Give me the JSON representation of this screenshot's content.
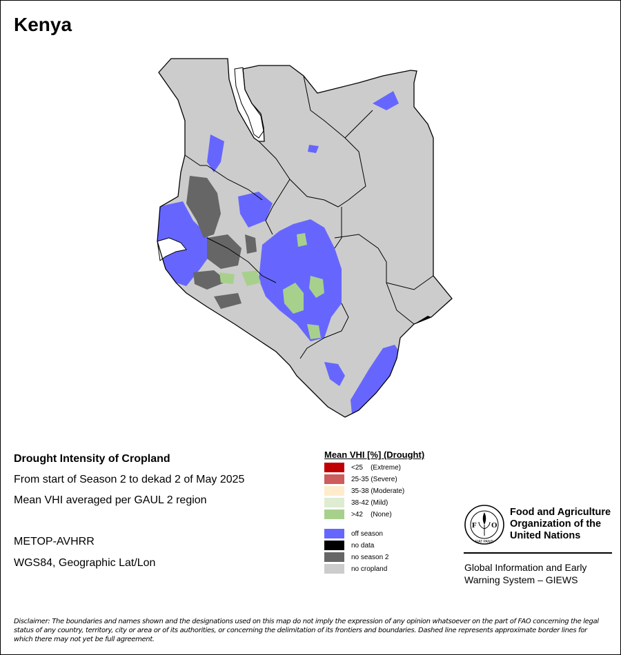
{
  "title": "Kenya",
  "map_info": {
    "heading": "Drought Intensity of Cropland",
    "period": "From start of Season 2 to dekad 2 of May 2025",
    "method": "Mean VHI averaged per GAUL 2 region",
    "sensor": "METOP-AVHRR",
    "projection": "WGS84, Geographic Lat/Lon"
  },
  "legend": {
    "title": "Mean VHI [%] (Drought)",
    "classes": [
      {
        "label": "<25    (Extreme)",
        "color": "#c00000"
      },
      {
        "label": "25-35 (Severe)",
        "color": "#cd5c5c"
      },
      {
        "label": "35-38 (Moderate)",
        "color": "#ffeccc"
      },
      {
        "label": "38-42 (Mild)",
        "color": "#deecd2"
      },
      {
        "label": ">42    (None)",
        "color": "#a8d08d"
      }
    ],
    "other": [
      {
        "label": "off season",
        "color": "#6666ff"
      },
      {
        "label": "no data",
        "color": "#000000"
      },
      {
        "label": "no season 2",
        "color": "#666666"
      },
      {
        "label": "no cropland",
        "color": "#cccccc"
      }
    ]
  },
  "org": {
    "name_line1": "Food and Agriculture",
    "name_line2": "Organization of the",
    "name_line3": "United Nations",
    "logo_text": "FAO",
    "logo_motto": "FIAT PANIS",
    "system_line1": "Global Information and Early",
    "system_line2": "Warning System – GIEWS"
  },
  "disclaimer": "Disclaimer: The boundaries and names shown and the designations used on this map do not imply the expression of any opinion whatsoever on the part of FAO concerning the legal status of any country, territory, city or area or of its authorities, or concerning the delimitation of its frontiers and boundaries. Dashed line represents approximate border lines for which there may not yet be full agreement."
}
